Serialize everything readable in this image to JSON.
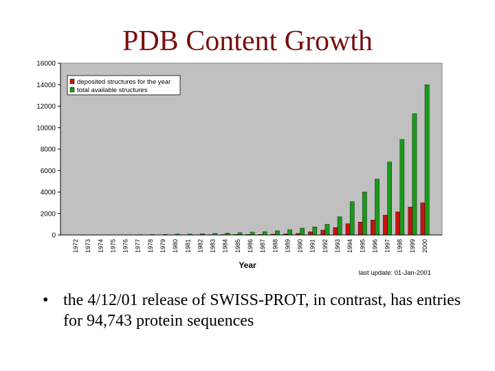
{
  "slide": {
    "title": "PDB Content Growth",
    "bullet_mark": "•",
    "bullet_text": "the 4/12/01 release of SWISS-PROT, in contrast, has entries for 94,743 protein sequences"
  },
  "colors": {
    "title": "#7a0f0f",
    "plot_background": "#c0c0c0",
    "deposited": "#cc1111",
    "total": "#1a9a1a"
  },
  "chart_data": {
    "type": "bar",
    "title": "",
    "xlabel": "Year",
    "ylabel": "",
    "ylim": [
      0,
      16000
    ],
    "yticks": [
      0,
      2000,
      4000,
      6000,
      8000,
      10000,
      12000,
      14000,
      16000
    ],
    "categories": [
      "1972",
      "1973",
      "1974",
      "1975",
      "1976",
      "1977",
      "1978",
      "1979",
      "1980",
      "1981",
      "1982",
      "1983",
      "1984",
      "1985",
      "1986",
      "1987",
      "1988",
      "1989",
      "1990",
      "1991",
      "1992",
      "1993",
      "1994",
      "1995",
      "1996",
      "1997",
      "1998",
      "1999",
      "2000"
    ],
    "series": [
      {
        "name": "deposited structures for the year",
        "color": "#cc1111",
        "values": [
          1,
          2,
          10,
          5,
          10,
          5,
          5,
          15,
          20,
          15,
          25,
          30,
          35,
          40,
          45,
          50,
          75,
          100,
          150,
          300,
          450,
          700,
          1050,
          1200,
          1400,
          1850,
          2150,
          2600,
          3000
        ]
      },
      {
        "name": "total available structures",
        "color": "#1a9a1a",
        "values": [
          1,
          3,
          13,
          18,
          28,
          33,
          38,
          53,
          73,
          88,
          113,
          143,
          178,
          218,
          263,
          313,
          388,
          488,
          638,
          750,
          1000,
          1700,
          3100,
          4000,
          5200,
          6800,
          8900,
          11300,
          14000
        ]
      }
    ],
    "legend_position": "top-left",
    "grid": false,
    "annotation": "last update: 01-Jan-2001"
  }
}
